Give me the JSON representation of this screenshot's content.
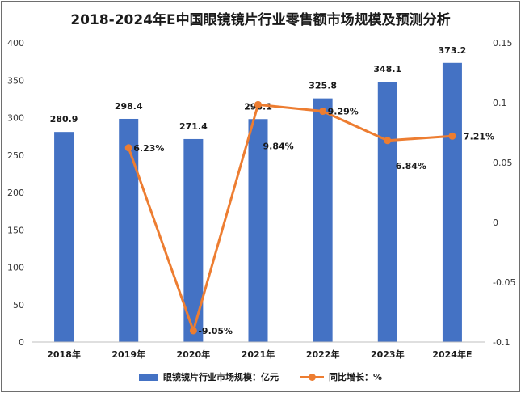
{
  "chart_data": {
    "type": "bar",
    "title": "2018-2024年E中国眼镜镜片行业零售额市场规模及预测分析",
    "categories": [
      "2018年",
      "2019年",
      "2020年",
      "2021年",
      "2022年",
      "2023年",
      "2024年E"
    ],
    "series": [
      {
        "name": "眼镜镜片行业市场规模：亿元",
        "type": "bar",
        "axis": "left",
        "color": "#4472c4",
        "values": [
          280.9,
          298.4,
          271.4,
          298.1,
          325.8,
          348.1,
          373.2
        ],
        "labels": [
          "280.9",
          "298.4",
          "271.4",
          "298.1",
          "325.8",
          "348.1",
          "373.2"
        ]
      },
      {
        "name": "同比增长：%",
        "type": "line",
        "axis": "right",
        "color": "#ed7d31",
        "values": [
          null,
          0.0623,
          -0.0905,
          0.0984,
          0.0929,
          0.0684,
          0.0721
        ],
        "labels": [
          "",
          "6.23%",
          "-9.05%",
          "9.84%",
          "9.29%",
          "6.84%",
          "7.21%"
        ]
      }
    ],
    "y_left": {
      "min": 0,
      "max": 400,
      "ticks": [
        "0",
        "50",
        "100",
        "150",
        "200",
        "250",
        "300",
        "350",
        "400"
      ]
    },
    "y_right": {
      "min": -0.1,
      "max": 0.15,
      "ticks": [
        "-0.1",
        "-0.05",
        "0",
        "0.05",
        "0.1",
        "0.15"
      ]
    },
    "grid": false,
    "legend_position": "bottom"
  }
}
